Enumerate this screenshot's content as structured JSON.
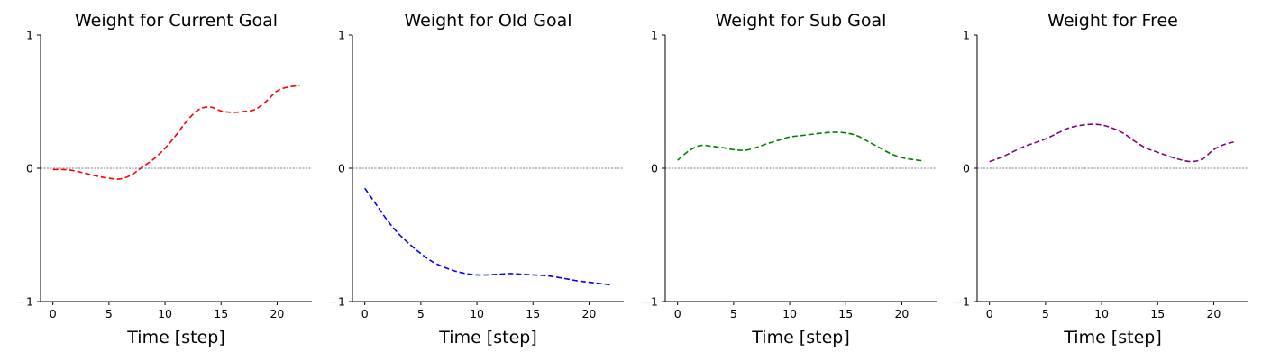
{
  "chart_data": [
    {
      "type": "line",
      "title": "Weight for Current Goal",
      "xlabel": "Time [step]",
      "ylabel": "",
      "xlim": [
        -1.1,
        23.1
      ],
      "ylim": [
        -1,
        1
      ],
      "xticks": [
        0,
        5,
        10,
        15,
        20
      ],
      "yticks": [
        -1,
        0,
        1
      ],
      "color": "#ff0000",
      "series": [
        {
          "x": [
            0,
            1,
            2,
            3,
            4,
            5,
            6,
            7,
            8,
            9,
            10,
            11,
            12,
            13,
            14,
            15,
            16,
            17,
            18,
            19,
            20,
            21,
            22
          ],
          "y": [
            -0.01,
            -0.01,
            -0.02,
            -0.04,
            -0.06,
            -0.075,
            -0.08,
            -0.05,
            0.01,
            0.07,
            0.15,
            0.25,
            0.36,
            0.44,
            0.46,
            0.43,
            0.42,
            0.425,
            0.44,
            0.5,
            0.58,
            0.61,
            0.62
          ]
        }
      ]
    },
    {
      "type": "line",
      "title": "Weight for Old Goal",
      "xlabel": "Time [step]",
      "ylabel": "",
      "xlim": [
        -1.1,
        23.1
      ],
      "ylim": [
        -1,
        1
      ],
      "xticks": [
        0,
        5,
        10,
        15,
        20
      ],
      "yticks": [
        -1,
        0,
        1
      ],
      "color": "#0000ff",
      "series": [
        {
          "x": [
            0,
            1,
            2,
            3,
            4,
            5,
            6,
            7,
            8,
            9,
            10,
            11,
            12,
            13,
            14,
            15,
            16,
            17,
            18,
            19,
            20,
            21,
            22
          ],
          "y": [
            -0.15,
            -0.27,
            -0.39,
            -0.49,
            -0.57,
            -0.64,
            -0.7,
            -0.74,
            -0.77,
            -0.79,
            -0.8,
            -0.8,
            -0.795,
            -0.79,
            -0.795,
            -0.8,
            -0.805,
            -0.815,
            -0.83,
            -0.845,
            -0.855,
            -0.865,
            -0.875
          ]
        }
      ]
    },
    {
      "type": "line",
      "title": "Weight for Sub Goal",
      "xlabel": "Time [step]",
      "ylabel": "",
      "xlim": [
        -1.1,
        23.1
      ],
      "ylim": [
        -1,
        1
      ],
      "xticks": [
        0,
        5,
        10,
        15,
        20
      ],
      "yticks": [
        -1,
        0,
        1
      ],
      "color": "#008000",
      "series": [
        {
          "x": [
            0,
            1,
            2,
            3,
            4,
            5,
            6,
            7,
            8,
            9,
            10,
            11,
            12,
            13,
            14,
            15,
            16,
            17,
            18,
            19,
            20,
            21,
            22
          ],
          "y": [
            0.06,
            0.13,
            0.17,
            0.165,
            0.155,
            0.14,
            0.135,
            0.155,
            0.185,
            0.21,
            0.235,
            0.245,
            0.255,
            0.265,
            0.27,
            0.265,
            0.245,
            0.2,
            0.155,
            0.11,
            0.08,
            0.065,
            0.055
          ]
        }
      ]
    },
    {
      "type": "line",
      "title": "Weight for Free",
      "xlabel": "Time [step]",
      "ylabel": "",
      "xlim": [
        -1.1,
        23.1
      ],
      "ylim": [
        -1,
        1
      ],
      "xticks": [
        0,
        5,
        10,
        15,
        20
      ],
      "yticks": [
        -1,
        0,
        1
      ],
      "color": "#800080",
      "series": [
        {
          "x": [
            0,
            1,
            2,
            3,
            4,
            5,
            6,
            7,
            8,
            9,
            10,
            11,
            12,
            13,
            14,
            15,
            16,
            17,
            18,
            19,
            20,
            21,
            22
          ],
          "y": [
            0.05,
            0.08,
            0.12,
            0.16,
            0.19,
            0.22,
            0.26,
            0.3,
            0.32,
            0.33,
            0.325,
            0.3,
            0.26,
            0.2,
            0.15,
            0.12,
            0.09,
            0.065,
            0.05,
            0.07,
            0.14,
            0.18,
            0.2
          ]
        }
      ]
    }
  ]
}
